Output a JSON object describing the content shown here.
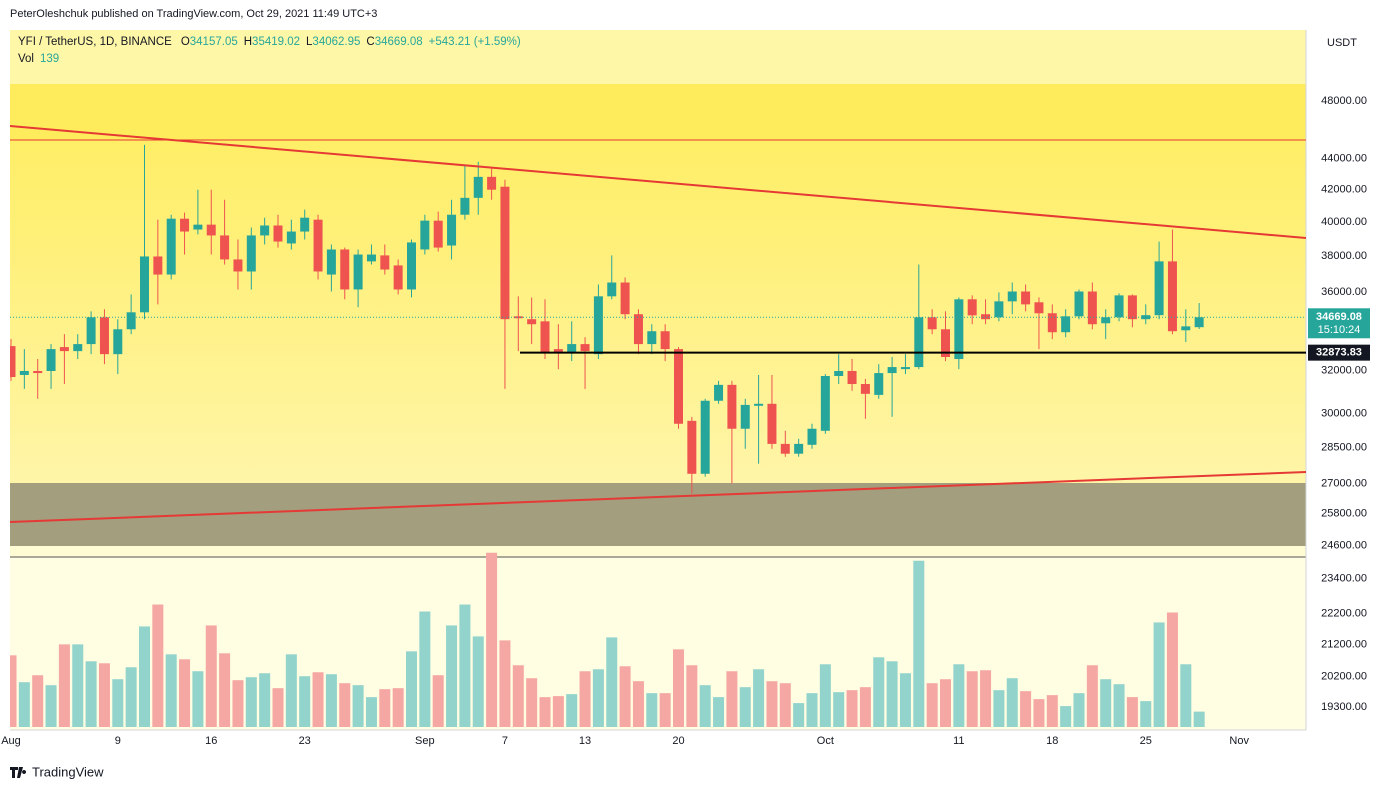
{
  "header": {
    "author_line": "PeterOleshchuk published on TradingView.com, Oct 29, 2021 11:49 UTC+3"
  },
  "footer": {
    "brand": "TradingView"
  },
  "chart_data": {
    "type": "candlestick",
    "title": "YFI / TetherUS, 1D, BINANCE",
    "ohlc_letters": [
      "O",
      "H",
      "L",
      "C"
    ],
    "change": "+543.21 (+1.59%)",
    "volume_label": "Vol",
    "currency": "USDT",
    "countdown": "15:10:24",
    "categories": [
      "Aug",
      null,
      null,
      null,
      null,
      null,
      null,
      null,
      "9",
      null,
      null,
      null,
      null,
      null,
      null,
      "16",
      null,
      null,
      null,
      null,
      null,
      null,
      "23",
      null,
      null,
      null,
      null,
      null,
      null,
      null,
      null,
      "Sep",
      null,
      null,
      null,
      null,
      null,
      "7",
      null,
      null,
      null,
      null,
      null,
      "13",
      null,
      null,
      null,
      null,
      null,
      null,
      "20",
      null,
      null,
      null,
      null,
      null,
      null,
      null,
      null,
      null,
      null,
      "Oct",
      null,
      null,
      null,
      null,
      null,
      null,
      null,
      null,
      null,
      "11",
      null,
      null,
      null,
      null,
      null,
      null,
      "18",
      null,
      null,
      null,
      null,
      null,
      null,
      "25",
      null,
      null,
      null,
      null,
      null,
      null,
      "Nov"
    ],
    "open": [
      33200,
      31790,
      31980,
      31980,
      33150,
      32950,
      33300,
      34670,
      32800,
      34050,
      34930,
      37990,
      36970,
      40210,
      39560,
      39850,
      39210,
      37820,
      37140,
      39210,
      39800,
      38740,
      39440,
      40150,
      36970,
      38390,
      36150,
      37710,
      38050,
      37480,
      36150,
      38390,
      40090,
      38620,
      40450,
      41490,
      42820,
      42190,
      34720,
      34570,
      34460,
      33050,
      32850,
      33300,
      32800,
      35780,
      36530,
      34830,
      33300,
      33950,
      33050,
      29670,
      27400,
      30580,
      31320,
      29320,
      30350,
      30440,
      28660,
      28240,
      28620,
      29230,
      31740,
      31980,
      31360,
      30850,
      31880,
      32070,
      32170,
      34670,
      34050,
      32560,
      35620,
      34830,
      34670,
      35510,
      36040,
      35460,
      34880,
      33900,
      34720,
      36040,
      34360,
      34670,
      35830,
      34570,
      34780,
      37710,
      34000,
      34157.05,
      null,
      null,
      null
    ],
    "high": [
      33550,
      33050,
      32560,
      33300,
      33800,
      33800,
      34980,
      35090,
      34570,
      35880,
      44930,
      40150,
      40450,
      40580,
      42000,
      42000,
      41370,
      38970,
      39680,
      40270,
      40450,
      40150,
      40760,
      40450,
      38680,
      38500,
      38390,
      38680,
      38680,
      37820,
      38970,
      40450,
      40640,
      41370,
      43600,
      43800,
      43470,
      42630,
      35780,
      35720,
      35620,
      34310,
      34460,
      33650,
      36420,
      38050,
      36810,
      35090,
      34310,
      34310,
      33150,
      29850,
      30670,
      31510,
      31510,
      30670,
      31790,
      31790,
      29230,
      28880,
      29540,
      31830,
      32800,
      32560,
      31600,
      32310,
      32660,
      32800,
      37530,
      35090,
      34980,
      35720,
      35830,
      35620,
      35990,
      36530,
      36420,
      35720,
      35350,
      35090,
      36150,
      36530,
      35090,
      35940,
      35880,
      35350,
      38850,
      39560,
      35090,
      35419.02,
      null,
      null,
      null
    ],
    "low": [
      31510,
      31130,
      30670,
      31130,
      31360,
      32560,
      32800,
      32310,
      31830,
      33800,
      34570,
      35350,
      36700,
      38100,
      39270,
      38100,
      37530,
      36150,
      36150,
      38680,
      38500,
      38390,
      38970,
      36700,
      36040,
      35620,
      35200,
      37530,
      36970,
      35880,
      35720,
      38100,
      38270,
      37820,
      40150,
      40450,
      41370,
      31130,
      32950,
      33300,
      32560,
      32070,
      32460,
      31130,
      32560,
      35620,
      34570,
      32800,
      32800,
      32460,
      29320,
      26600,
      27280,
      30440,
      27000,
      28450,
      27820,
      28450,
      28110,
      28110,
      28450,
      29100,
      31360,
      31040,
      29760,
      30670,
      29850,
      31830,
      32070,
      33800,
      32460,
      32070,
      34310,
      34310,
      34460,
      34830,
      34980,
      33050,
      33550,
      33650,
      34570,
      34050,
      33550,
      34460,
      34150,
      34310,
      34570,
      33800,
      33400,
      34062.95,
      null,
      null,
      null
    ],
    "close": [
      31690,
      31980,
      31880,
      33050,
      32950,
      33300,
      34670,
      32800,
      34050,
      34930,
      37990,
      36970,
      40210,
      39440,
      39850,
      39210,
      37820,
      37140,
      39210,
      39800,
      38850,
      39440,
      40270,
      37140,
      38390,
      36150,
      38100,
      38100,
      37250,
      36150,
      38800,
      40090,
      38500,
      40450,
      41490,
      42820,
      42000,
      34570,
      34620,
      34310,
      32850,
      32850,
      33300,
      32950,
      35780,
      36530,
      34830,
      33300,
      33950,
      33050,
      29540,
      27400,
      30580,
      31320,
      29320,
      30390,
      30440,
      28660,
      28240,
      28660,
      29320,
      31740,
      31980,
      31360,
      30900,
      31880,
      32170,
      32170,
      34670,
      34050,
      32660,
      35620,
      34770,
      34570,
      35510,
      36040,
      35350,
      34880,
      33900,
      34720,
      36040,
      34310,
      34670,
      35830,
      34570,
      34780,
      37710,
      33950,
      34200,
      34669.08,
      null,
      null,
      null
    ],
    "volume": [
      648,
      405,
      468,
      378,
      747,
      747,
      594,
      576,
      432,
      540,
      909,
      1107,
      657,
      612,
      504,
      918,
      666,
      423,
      450,
      486,
      351,
      657,
      459,
      495,
      477,
      396,
      378,
      270,
      342,
      351,
      684,
      1044,
      468,
      918,
      1107,
      819,
      1575,
      783,
      558,
      441,
      270,
      279,
      297,
      504,
      522,
      810,
      549,
      414,
      306,
      306,
      702,
      558,
      378,
      270,
      504,
      360,
      522,
      414,
      396,
      216,
      306,
      567,
      315,
      333,
      360,
      630,
      594,
      486,
      1503,
      396,
      432,
      567,
      504,
      513,
      333,
      441,
      324,
      252,
      288,
      189,
      306,
      558,
      432,
      387,
      270,
      234,
      945,
      1035,
      567,
      139,
      null,
      null,
      null
    ],
    "ylim": [
      18640,
      53400
    ],
    "log_scale": true,
    "yticks": [
      {
        "value": 48000,
        "label": "48000.00"
      },
      {
        "value": 44000,
        "label": "44000.00"
      },
      {
        "value": 42000,
        "label": "42000.00"
      },
      {
        "value": 40000,
        "label": "40000.00"
      },
      {
        "value": 38000,
        "label": "38000.00"
      },
      {
        "value": 36000,
        "label": "36000.00"
      },
      {
        "value": 32000,
        "label": "32000.00"
      },
      {
        "value": 30000,
        "label": "30000.00"
      },
      {
        "value": 28500,
        "label": "28500.00"
      },
      {
        "value": 27000,
        "label": "27000.00"
      },
      {
        "value": 25800,
        "label": "25800.00"
      },
      {
        "value": 24600,
        "label": "24600.00"
      },
      {
        "value": 23400,
        "label": "23400.00"
      },
      {
        "value": 22200,
        "label": "22200.00"
      },
      {
        "value": 21200,
        "label": "21200.00"
      },
      {
        "value": 20200,
        "label": "20200.00"
      },
      {
        "value": 19300,
        "label": "19300.00"
      }
    ],
    "volume_ylim": [
      0,
      1600
    ],
    "grid": false,
    "price_line": 32873.83,
    "up_color": "#26a69a",
    "down_color": "#ef5350",
    "volume_up_color": "#92d3cc",
    "volume_down_color": "#f5a7a3"
  }
}
